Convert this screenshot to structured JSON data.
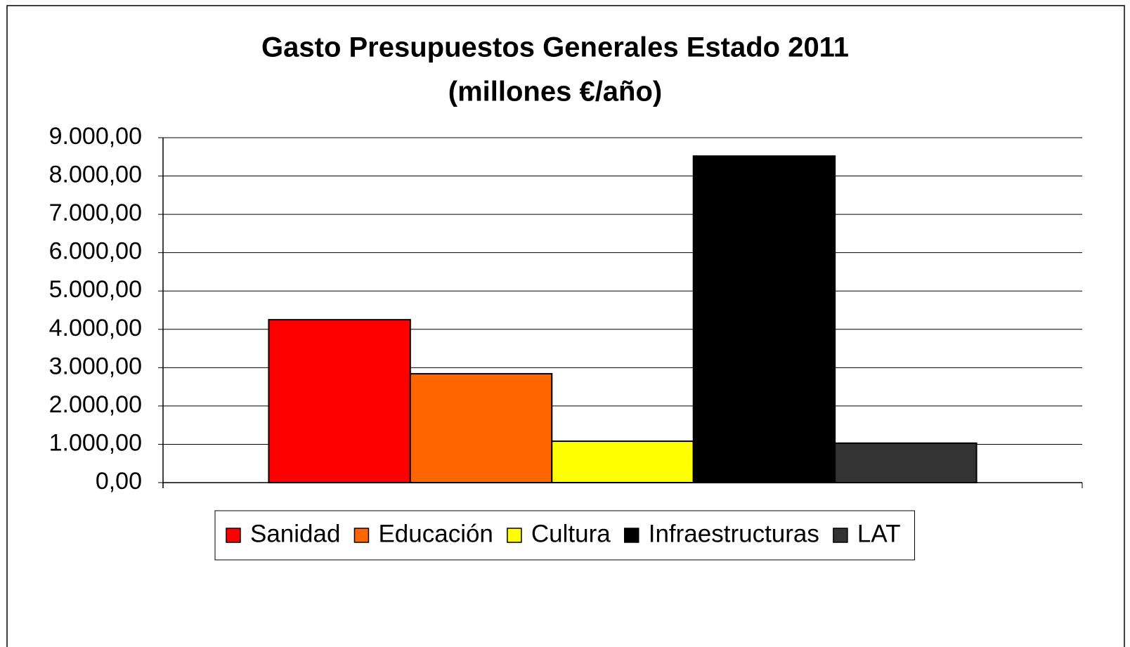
{
  "chart_data": {
    "type": "bar",
    "title": "Gasto Presupuestos Generales Estado 2011",
    "subtitle": "(millones €/año)",
    "categories": [
      null
    ],
    "series": [
      {
        "name": "Sanidad",
        "color": "#ff0000",
        "values": [
          4250
        ]
      },
      {
        "name": "Educación",
        "color": "#ff6600",
        "values": [
          2840
        ]
      },
      {
        "name": "Cultura",
        "color": "#ffff00",
        "values": [
          1080
        ]
      },
      {
        "name": "Infraestructuras",
        "color": "#000000",
        "values": [
          8520
        ]
      },
      {
        "name": "LAT",
        "color": "#333333",
        "values": [
          1030
        ]
      }
    ],
    "ylim": [
      0,
      9000
    ],
    "yticks": [
      {
        "value": 0,
        "label": "0,00"
      },
      {
        "value": 1000,
        "label": "1.000,00"
      },
      {
        "value": 2000,
        "label": "2.000,00"
      },
      {
        "value": 3000,
        "label": "3.000,00"
      },
      {
        "value": 4000,
        "label": "4.000,00"
      },
      {
        "value": 5000,
        "label": "5.000,00"
      },
      {
        "value": 6000,
        "label": "6.000,00"
      },
      {
        "value": 7000,
        "label": "7.000,00"
      },
      {
        "value": 8000,
        "label": "8.000,00"
      },
      {
        "value": 9000,
        "label": "9.000,00"
      }
    ],
    "grid": true,
    "legend": "bottom"
  }
}
